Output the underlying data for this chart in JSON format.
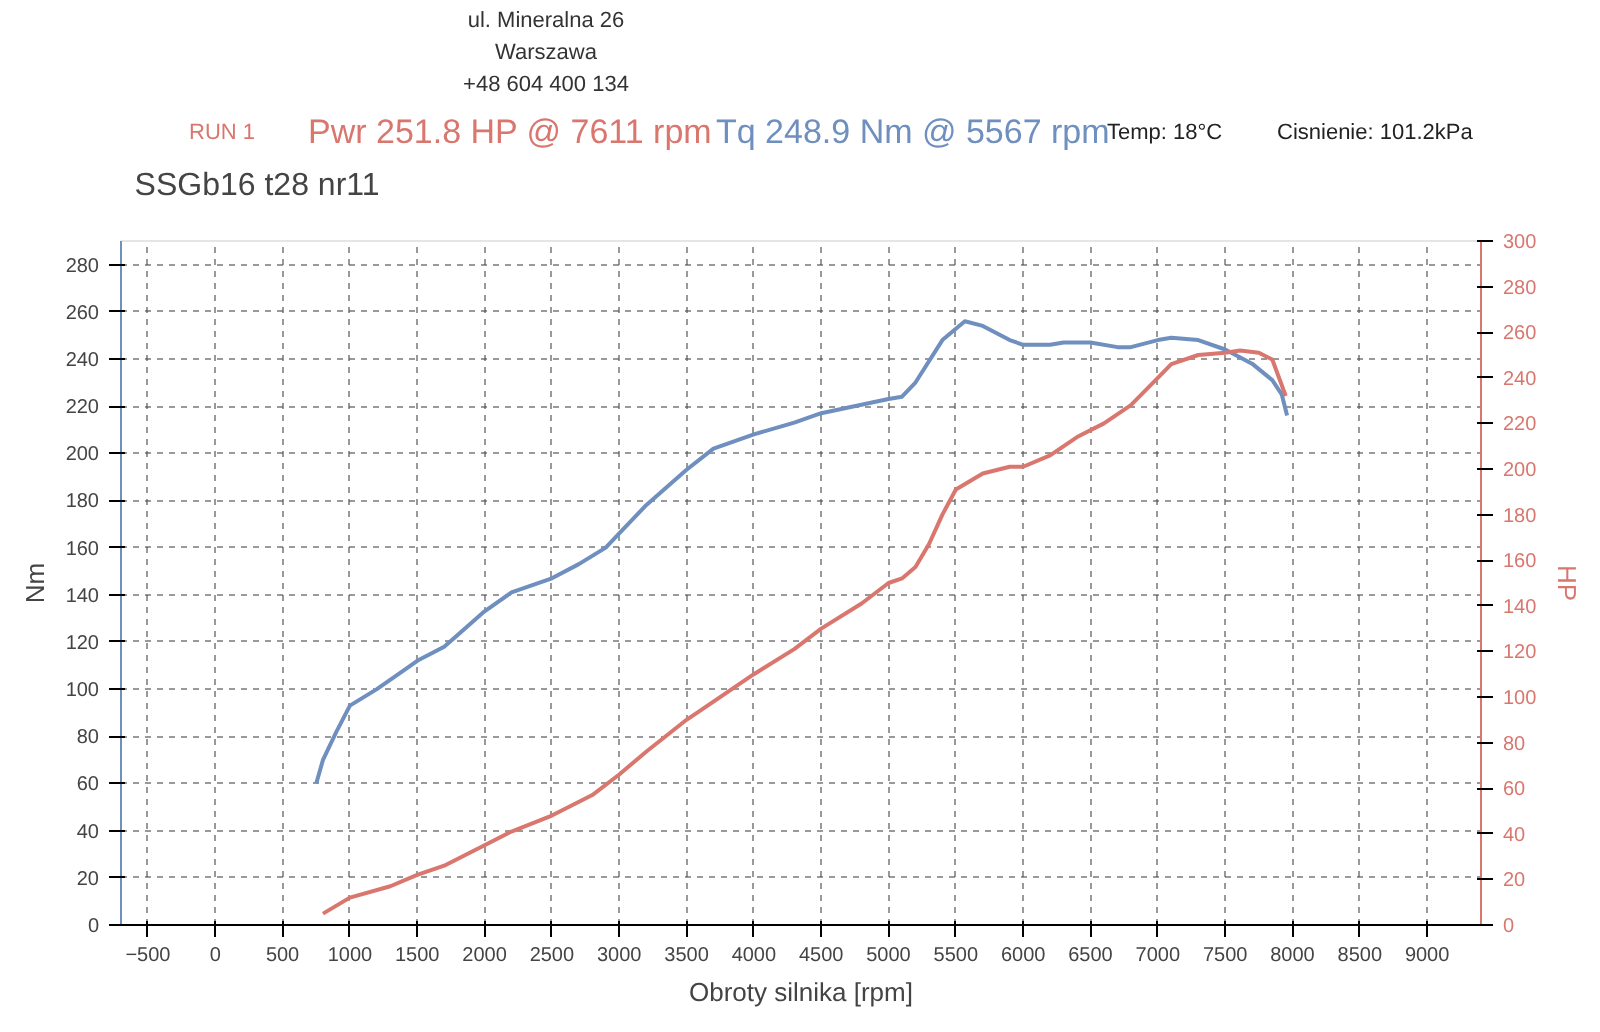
{
  "chart_data": {
    "type": "line",
    "title": "SSGb16  t28  nr11",
    "annotations": [
      "ul. Mineralna 26",
      "Warszawa",
      "+48 604 400 134",
      "RUN 1",
      "Pwr 251.8 HP @ 7611 rpm",
      "Tq 248.9 Nm @ 5567 rpm",
      "Temp: 18°C",
      "Cisnienie: 101.2kPa"
    ],
    "xlabel": "Obroty silnika [rpm]",
    "ylabel": "Nm",
    "y2label": "HP",
    "xlim": [
      -700,
      9400
    ],
    "xticks": [
      -500,
      0,
      500,
      1000,
      1500,
      2000,
      2500,
      3000,
      3500,
      4000,
      4500,
      5000,
      5500,
      6000,
      6500,
      7000,
      7500,
      8000,
      8500,
      9000
    ],
    "ylim": [
      0,
      290
    ],
    "yticks": [
      0,
      20,
      40,
      60,
      80,
      100,
      120,
      140,
      160,
      180,
      200,
      220,
      240,
      260,
      280
    ],
    "y2lim": [
      0,
      300
    ],
    "y2ticks": [
      0,
      20,
      40,
      60,
      80,
      100,
      120,
      140,
      160,
      180,
      200,
      220,
      240,
      260,
      280,
      300
    ],
    "grid": true,
    "line_style": "solid",
    "series": [
      {
        "color": "#6f8fbf",
        "x": [
          750,
          800,
          900,
          1000,
          1200,
          1400,
          1500,
          1700,
          1800,
          2000,
          2200,
          2500,
          2700,
          2900,
          3000,
          3200,
          3500,
          3700,
          4000,
          4300,
          4500,
          5000,
          5100,
          5200,
          5400,
          5567,
          5700,
          5900,
          6000,
          6200,
          6300,
          6500,
          6700,
          6800,
          7000,
          7100,
          7300,
          7500,
          7700,
          7850,
          7920,
          7960
        ],
        "values": [
          60,
          70,
          82,
          93,
          100,
          108,
          112,
          118,
          123,
          133,
          141,
          147,
          153,
          160,
          166,
          178,
          193,
          202,
          208,
          213,
          217,
          223,
          224,
          230,
          248,
          256,
          254,
          248,
          246,
          246,
          247,
          247,
          245,
          245,
          248,
          249,
          248,
          244,
          238,
          231,
          225,
          216
        ]
      },
      {
        "color": "#d9776f",
        "axis": "y2",
        "x": [
          800,
          1000,
          1300,
          1500,
          1700,
          2000,
          2200,
          2500,
          2800,
          3000,
          3200,
          3500,
          3700,
          4000,
          4300,
          4500,
          4800,
          5000,
          5100,
          5200,
          5300,
          5400,
          5500,
          5700,
          5900,
          6000,
          6200,
          6400,
          6600,
          6800,
          7000,
          7100,
          7300,
          7500,
          7611,
          7750,
          7850,
          7950
        ],
        "values": [
          5,
          12,
          17,
          22,
          26,
          35,
          41,
          48,
          57,
          66,
          76,
          90,
          98,
          110,
          121,
          130,
          141,
          150,
          152,
          157,
          167,
          180,
          191,
          198,
          201,
          201,
          206,
          214,
          220,
          228,
          240,
          246,
          250,
          251,
          252,
          251,
          248,
          232
        ]
      }
    ]
  }
}
